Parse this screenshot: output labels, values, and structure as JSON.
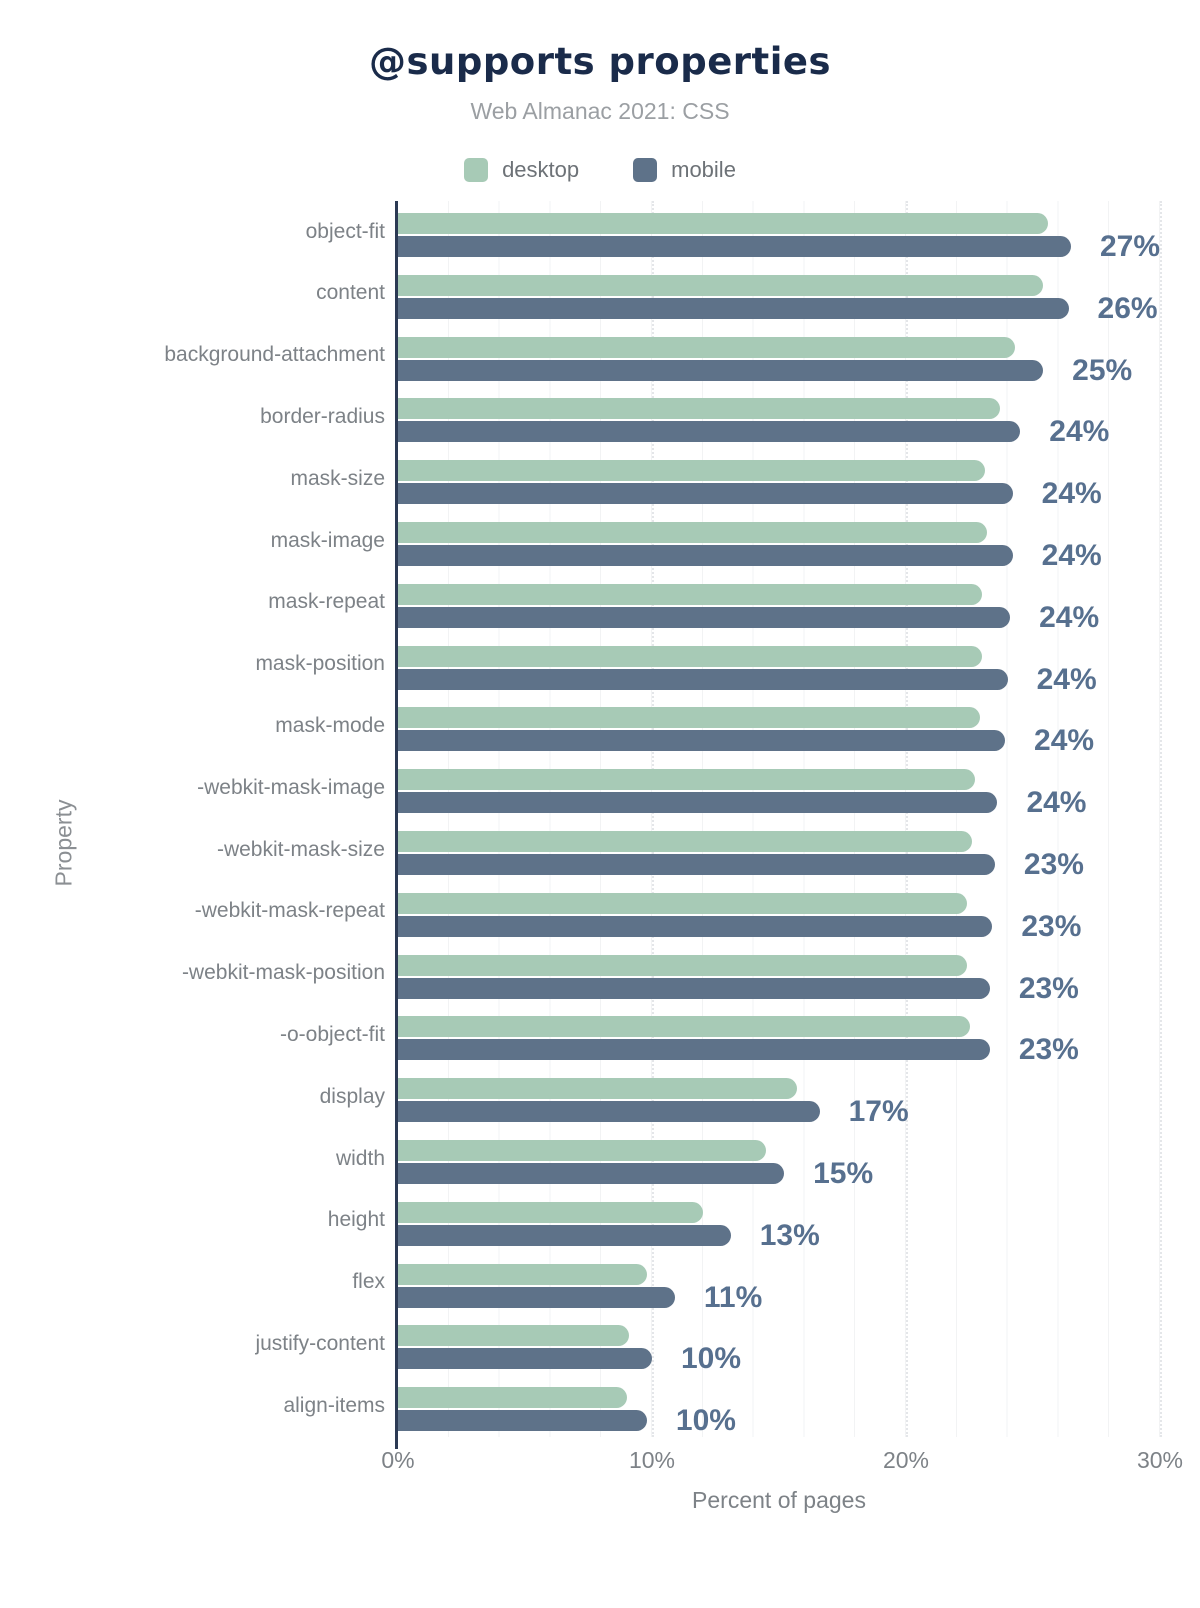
{
  "title": "@supports properties",
  "subtitle": "Web Almanac 2021: CSS",
  "legend": {
    "desktop_label": "desktop",
    "mobile_label": "mobile"
  },
  "xlabel": "Percent of pages",
  "ylabel": "Property",
  "x_ticks": [
    "0%",
    "10%",
    "20%",
    "30%"
  ],
  "colors": {
    "desktop": "#a7cab6",
    "mobile": "#5e7289",
    "title": "#1a2b4a",
    "value_label": "#57708f",
    "axis": "#2c3a54",
    "text_gray": "#7d8287",
    "subtitle_gray": "#9b9fa3"
  },
  "chart_data": {
    "type": "bar",
    "orientation": "horizontal",
    "title": "@supports properties",
    "subtitle": "Web Almanac 2021: CSS",
    "xlabel": "Percent of pages",
    "ylabel": "Property",
    "xlim": [
      0,
      30
    ],
    "x_tick_labels": [
      "0%",
      "10%",
      "20%",
      "30%"
    ],
    "legend_position": "top",
    "grid": "vertical minor lines every 2%, dotted major lines every 10%",
    "categories": [
      "object-fit",
      "content",
      "background-attachment",
      "border-radius",
      "mask-size",
      "mask-image",
      "mask-repeat",
      "mask-position",
      "mask-mode",
      "-webkit-mask-image",
      "-webkit-mask-size",
      "-webkit-mask-repeat",
      "-webkit-mask-position",
      "-o-object-fit",
      "display",
      "width",
      "height",
      "flex",
      "justify-content",
      "align-items"
    ],
    "series": [
      {
        "name": "desktop",
        "color": "#a7cab6",
        "values": [
          25.6,
          25.4,
          24.3,
          23.7,
          23.1,
          23.2,
          23.0,
          23.0,
          22.9,
          22.7,
          22.6,
          22.4,
          22.4,
          22.5,
          15.7,
          14.5,
          12.0,
          9.8,
          9.1,
          9.0
        ]
      },
      {
        "name": "mobile",
        "color": "#5e7289",
        "values": [
          26.8,
          26.4,
          25.4,
          24.5,
          24.2,
          24.2,
          24.1,
          24.0,
          23.9,
          23.6,
          23.5,
          23.4,
          23.3,
          23.3,
          16.6,
          15.2,
          13.1,
          10.9,
          10.0,
          9.8
        ]
      }
    ],
    "value_labels": [
      "27%",
      "26%",
      "25%",
      "24%",
      "24%",
      "24%",
      "24%",
      "24%",
      "24%",
      "24%",
      "23%",
      "23%",
      "23%",
      "23%",
      "17%",
      "15%",
      "13%",
      "11%",
      "10%",
      "10%"
    ],
    "value_labels_annotate": "mobile series, rounded"
  }
}
